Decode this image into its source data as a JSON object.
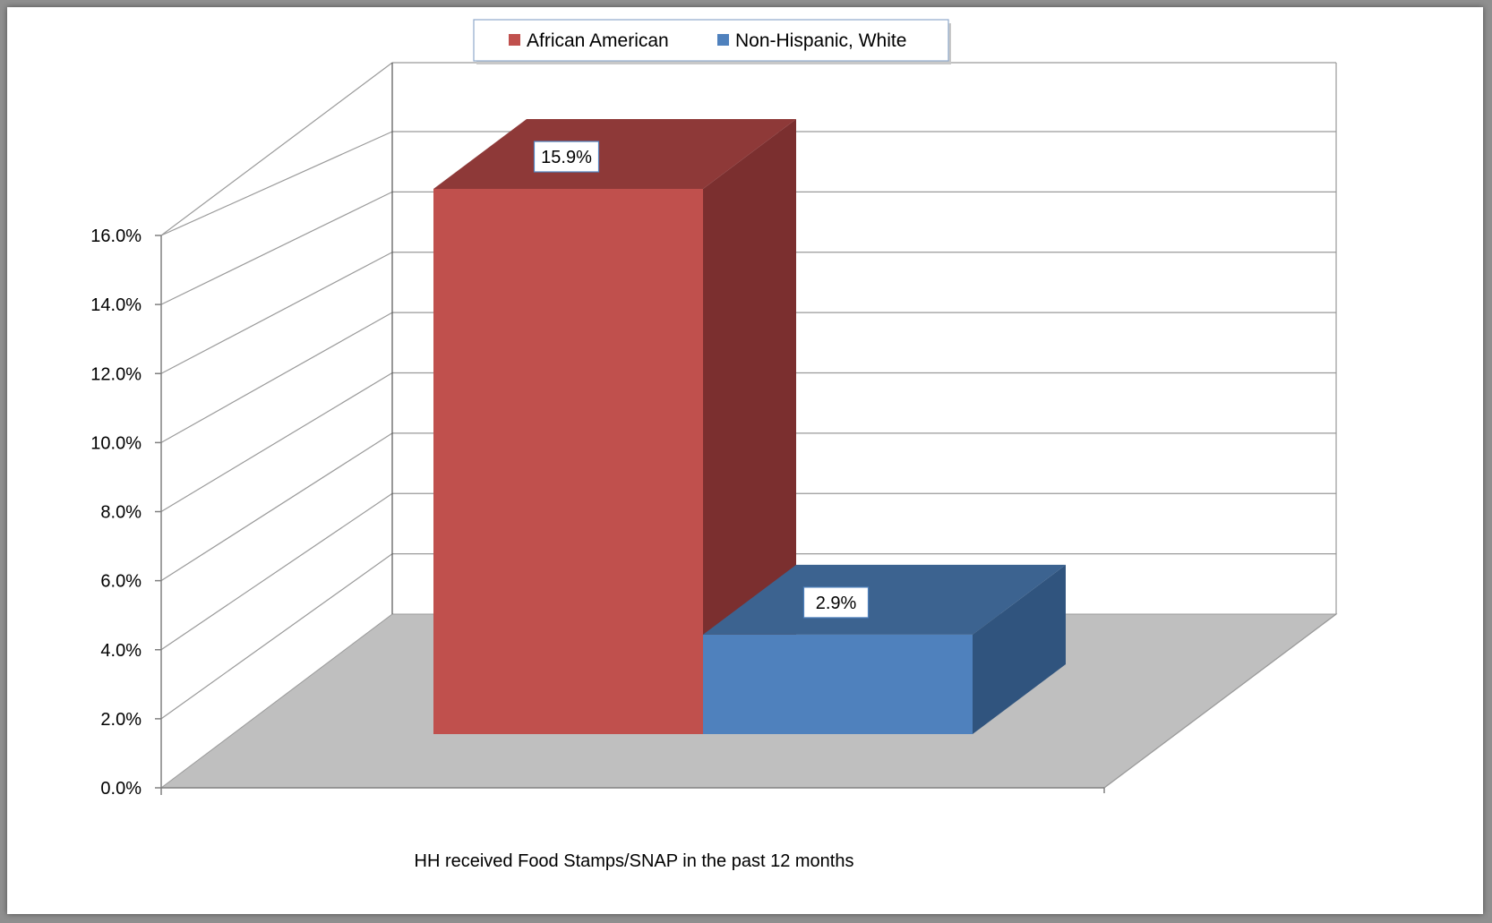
{
  "chart_data": {
    "type": "bar",
    "categories": [
      "HH received Food Stamps/SNAP in the past 12 months"
    ],
    "series": [
      {
        "name": "African American",
        "values": [
          0.159
        ],
        "color": "#C0504D",
        "top_color": "#8E3938",
        "side_color": "#7B2F2F"
      },
      {
        "name": "Non-Hispanic, White",
        "values": [
          0.029
        ],
        "color": "#4F81BD",
        "top_color": "#3C6390",
        "side_color": "#30547E"
      }
    ],
    "data_labels": [
      "15.9%",
      "2.9%"
    ],
    "y_ticks": [
      "0.0%",
      "2.0%",
      "4.0%",
      "6.0%",
      "8.0%",
      "10.0%",
      "12.0%",
      "14.0%",
      "16.0%"
    ],
    "ylim": [
      0,
      0.16
    ],
    "y_step": 0.02,
    "grid": true,
    "legend_position": "top",
    "title": "",
    "xlabel": "",
    "ylabel": "",
    "floor_color": "#BFBFBF",
    "grid_color": "#9a9a9a"
  }
}
